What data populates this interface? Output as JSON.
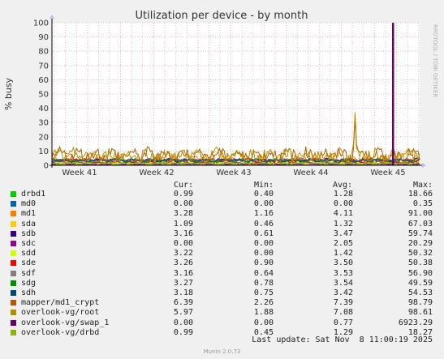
{
  "chart_data": {
    "type": "line",
    "title": "Utilization per device - by month",
    "ylabel": "% busy",
    "ylim": [
      0,
      100
    ],
    "yticks": [
      0,
      10,
      20,
      30,
      40,
      50,
      60,
      70,
      80,
      90,
      100
    ],
    "xticks": [
      "Week 41",
      "Week 42",
      "Week 43",
      "Week 44",
      "Week 45"
    ],
    "watermark": "RRDTOOL / TOBI OETIKER",
    "grid": true,
    "series": [
      {
        "name": "drbd1",
        "color": "#00cc00",
        "base": 1.28,
        "amp": 0.8,
        "peak": 18.66
      },
      {
        "name": "md0",
        "color": "#0066b3",
        "base": 0.0,
        "amp": 0.2,
        "peak": 0.35
      },
      {
        "name": "md1",
        "color": "#ff8000",
        "base": 4.11,
        "amp": 3.0,
        "peak": 91.0
      },
      {
        "name": "sda",
        "color": "#ffcc00",
        "base": 1.32,
        "amp": 0.8,
        "peak": 67.03
      },
      {
        "name": "sdb",
        "color": "#330099",
        "base": 3.47,
        "amp": 1.0,
        "peak": 59.74
      },
      {
        "name": "sdc",
        "color": "#990099",
        "base": 2.05,
        "amp": 0.6,
        "peak": 20.29
      },
      {
        "name": "sdd",
        "color": "#ccff00",
        "base": 1.42,
        "amp": 0.7,
        "peak": 50.32
      },
      {
        "name": "sde",
        "color": "#ff0000",
        "base": 3.5,
        "amp": 1.0,
        "peak": 50.38
      },
      {
        "name": "sdf",
        "color": "#808080",
        "base": 3.53,
        "amp": 1.0,
        "peak": 56.9
      },
      {
        "name": "sdg",
        "color": "#008f00",
        "base": 3.54,
        "amp": 1.0,
        "peak": 49.59
      },
      {
        "name": "sdh",
        "color": "#00487d",
        "base": 3.42,
        "amp": 1.0,
        "peak": 54.53
      },
      {
        "name": "mapper/md1_crypt",
        "color": "#b35a00",
        "base": 7.39,
        "amp": 4.0,
        "peak": 98.79
      },
      {
        "name": "overlook-vg/root",
        "color": "#b38f00",
        "base": 7.08,
        "amp": 4.0,
        "peak": 98.61
      },
      {
        "name": "overlook-vg/swap_1",
        "color": "#6b006b",
        "base": 0.77,
        "amp": 0.0,
        "peak": 6923.29
      },
      {
        "name": "overlook-vg/drbd",
        "color": "#8fb300",
        "base": 1.29,
        "amp": 0.6,
        "peak": 18.27
      }
    ]
  },
  "legend": {
    "headers": {
      "cur": "Cur:",
      "min": "Min:",
      "avg": "Avg:",
      "max": "Max:"
    },
    "rows": [
      {
        "name": "drbd1",
        "color": "#00cc00",
        "cur": "0.99",
        "min": "0.40",
        "avg": "1.28",
        "max": "18.66"
      },
      {
        "name": "md0",
        "color": "#0066b3",
        "cur": "0.00",
        "min": "0.00",
        "avg": "0.00",
        "max": "0.35"
      },
      {
        "name": "md1",
        "color": "#ff8000",
        "cur": "3.28",
        "min": "1.16",
        "avg": "4.11",
        "max": "91.00"
      },
      {
        "name": "sda",
        "color": "#ffcc00",
        "cur": "1.09",
        "min": "0.46",
        "avg": "1.32",
        "max": "67.03"
      },
      {
        "name": "sdb",
        "color": "#330099",
        "cur": "3.16",
        "min": "0.61",
        "avg": "3.47",
        "max": "59.74"
      },
      {
        "name": "sdc",
        "color": "#990099",
        "cur": "0.00",
        "min": "0.00",
        "avg": "2.05",
        "max": "20.29"
      },
      {
        "name": "sdd",
        "color": "#ccff00",
        "cur": "3.22",
        "min": "0.00",
        "avg": "1.42",
        "max": "50.32"
      },
      {
        "name": "sde",
        "color": "#ff0000",
        "cur": "3.26",
        "min": "0.90",
        "avg": "3.50",
        "max": "50.38"
      },
      {
        "name": "sdf",
        "color": "#808080",
        "cur": "3.16",
        "min": "0.64",
        "avg": "3.53",
        "max": "56.90"
      },
      {
        "name": "sdg",
        "color": "#008f00",
        "cur": "3.27",
        "min": "0.78",
        "avg": "3.54",
        "max": "49.59"
      },
      {
        "name": "sdh",
        "color": "#00487d",
        "cur": "3.18",
        "min": "0.75",
        "avg": "3.42",
        "max": "54.53"
      },
      {
        "name": "mapper/md1_crypt",
        "color": "#b35a00",
        "cur": "6.39",
        "min": "2.26",
        "avg": "7.39",
        "max": "98.79"
      },
      {
        "name": "overlook-vg/root",
        "color": "#b38f00",
        "cur": "5.97",
        "min": "1.88",
        "avg": "7.08",
        "max": "98.61"
      },
      {
        "name": "overlook-vg/swap_1",
        "color": "#6b006b",
        "cur": "0.00",
        "min": "0.00",
        "avg": "0.77",
        "max": "6923.29"
      },
      {
        "name": "overlook-vg/drbd",
        "color": "#8fb300",
        "cur": "0.99",
        "min": "0.45",
        "avg": "1.29",
        "max": "18.27"
      }
    ]
  },
  "footer": {
    "last_update": "Last update: Sat Nov  8 11:00:19 2025",
    "munin": "Munin 2.0.73"
  }
}
